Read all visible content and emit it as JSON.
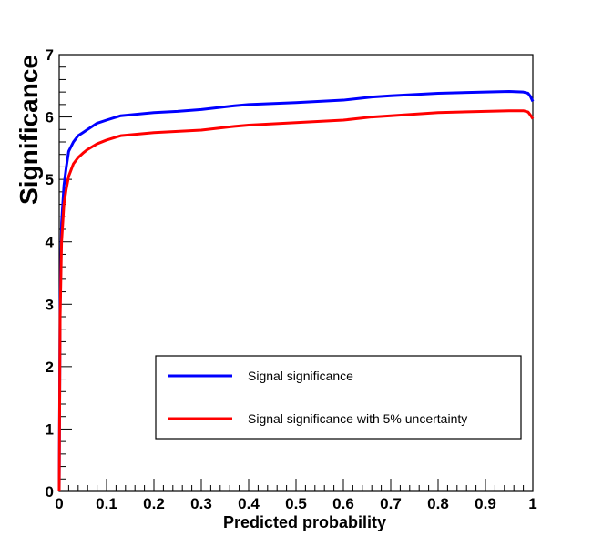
{
  "chart_data": {
    "type": "line",
    "title": "",
    "xlabel": "Predicted probability",
    "ylabel": "Significance",
    "xlim": [
      0,
      1
    ],
    "ylim": [
      0,
      7
    ],
    "xticks": [
      "0",
      "0.1",
      "0.2",
      "0.3",
      "0.4",
      "0.5",
      "0.6",
      "0.7",
      "0.8",
      "0.9",
      "1"
    ],
    "yticks": [
      "0",
      "1",
      "2",
      "3",
      "4",
      "5",
      "6",
      "7"
    ],
    "grid": false,
    "legend_position": "bottom-right",
    "series": [
      {
        "name": "Signal significance",
        "color": "#0000ff",
        "x": [
          0.0,
          0.002,
          0.005,
          0.01,
          0.015,
          0.02,
          0.03,
          0.04,
          0.05,
          0.06,
          0.08,
          0.1,
          0.13,
          0.2,
          0.25,
          0.3,
          0.37,
          0.4,
          0.5,
          0.6,
          0.66,
          0.7,
          0.8,
          0.9,
          0.95,
          0.98,
          0.99,
          0.995,
          1.0
        ],
        "y": [
          0.0,
          3.0,
          4.3,
          4.9,
          5.2,
          5.45,
          5.6,
          5.7,
          5.75,
          5.8,
          5.9,
          5.95,
          6.02,
          6.07,
          6.09,
          6.12,
          6.18,
          6.2,
          6.23,
          6.27,
          6.32,
          6.34,
          6.38,
          6.4,
          6.41,
          6.4,
          6.38,
          6.33,
          6.25
        ]
      },
      {
        "name": "Signal significance with 5% uncertainty",
        "color": "#ff0000",
        "x": [
          0.0,
          0.002,
          0.005,
          0.01,
          0.015,
          0.02,
          0.03,
          0.04,
          0.05,
          0.06,
          0.08,
          0.1,
          0.13,
          0.2,
          0.25,
          0.3,
          0.37,
          0.4,
          0.5,
          0.6,
          0.66,
          0.7,
          0.8,
          0.9,
          0.95,
          0.98,
          0.99,
          0.995,
          1.0
        ],
        "y": [
          0.0,
          2.8,
          4.0,
          4.6,
          4.85,
          5.05,
          5.25,
          5.35,
          5.42,
          5.48,
          5.57,
          5.63,
          5.7,
          5.75,
          5.77,
          5.79,
          5.85,
          5.87,
          5.91,
          5.95,
          6.0,
          6.02,
          6.07,
          6.09,
          6.1,
          6.1,
          6.08,
          6.03,
          5.97
        ]
      }
    ]
  }
}
